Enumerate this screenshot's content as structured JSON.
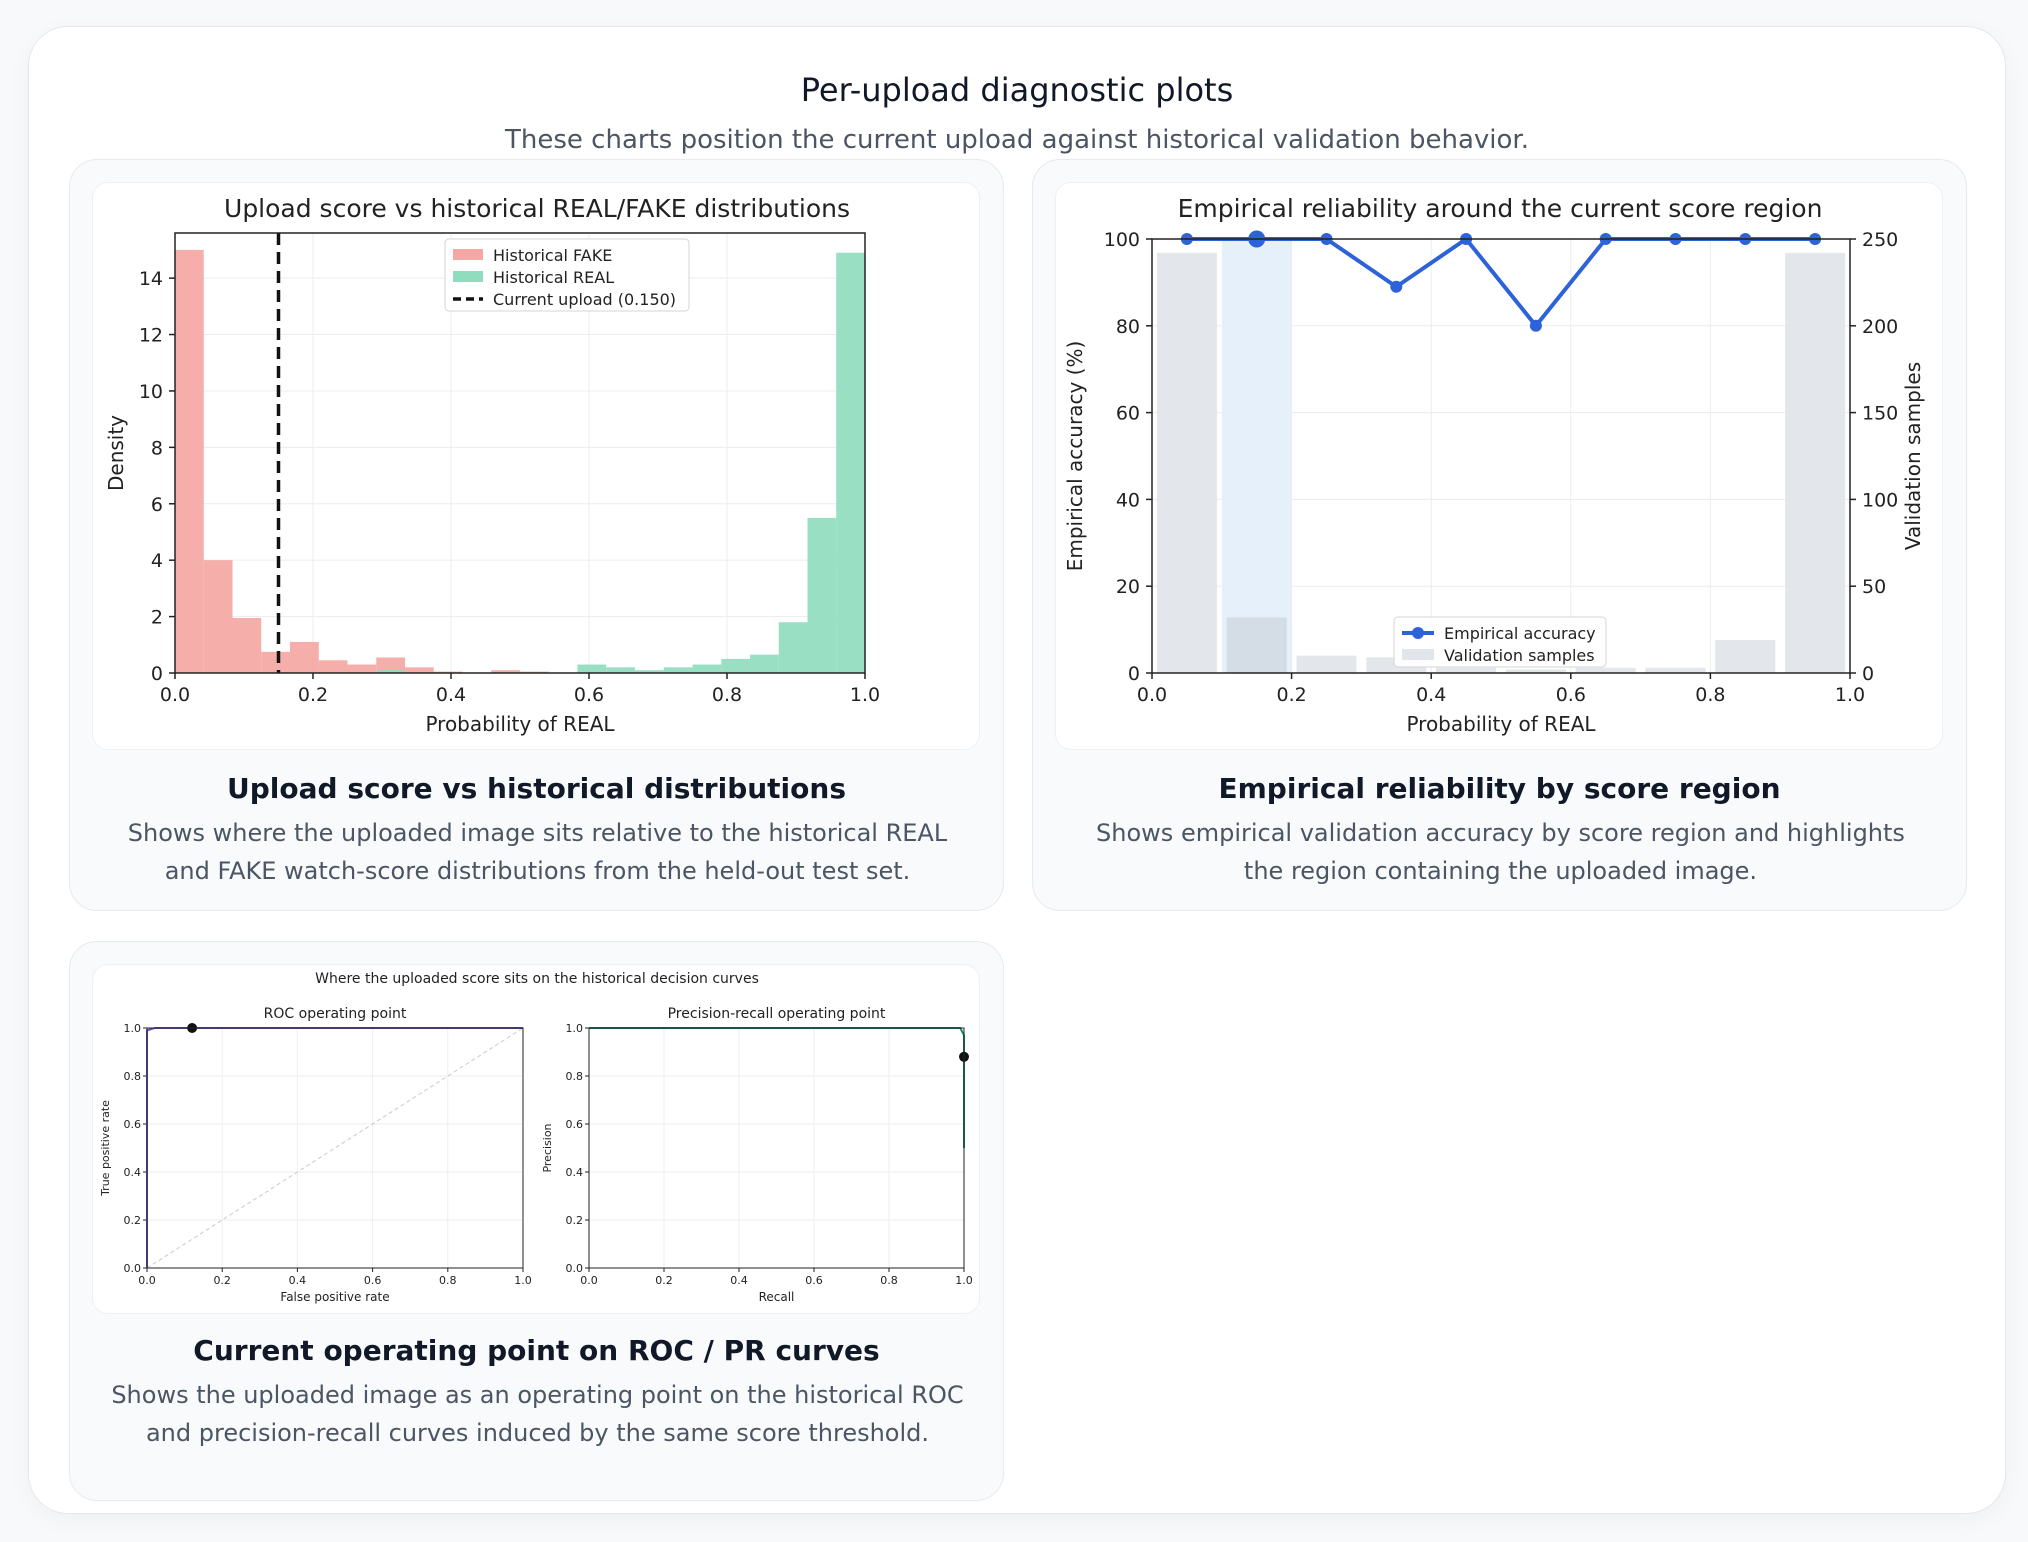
{
  "page": {
    "title": "Per-upload diagnostic plots",
    "subtitle": "These charts position the current upload against historical validation behavior."
  },
  "cards": [
    {
      "title": "Upload score vs historical distributions",
      "description": "Shows where the uploaded image sits relative to the historical REAL and FAKE watch-score distributions from the held-out test set."
    },
    {
      "title": "Empirical reliability by score region",
      "description": "Shows empirical validation accuracy by score region and highlights the region containing the uploaded image."
    },
    {
      "title": "Current operating point on ROC / PR curves",
      "description": "Shows the uploaded image as an operating point on the historical ROC and precision-recall curves induced by the same score threshold."
    }
  ],
  "colors": {
    "fake": "#f4a7a3",
    "real": "#8fdcbf",
    "accuracy_line": "#2d62d8",
    "sample_bar": "#e2e5ea",
    "highlight": "#e6f0fb"
  },
  "chart_data": [
    {
      "type": "bar",
      "title": "Upload score vs historical REAL/FAKE distributions",
      "xlabel": "Probability of REAL",
      "ylabel": "Density",
      "xlim": [
        0,
        1
      ],
      "ylim": [
        0,
        15.6
      ],
      "xticks": [
        "0.0",
        "0.2",
        "0.4",
        "0.6",
        "0.8",
        "1.0"
      ],
      "yticks": [
        "0",
        "2",
        "4",
        "6",
        "8",
        "10",
        "12",
        "14"
      ],
      "bin_width": 0.04167,
      "bin_starts": [
        0.0,
        0.0417,
        0.0833,
        0.125,
        0.1667,
        0.2083,
        0.25,
        0.2917,
        0.3333,
        0.375,
        0.4167,
        0.4583,
        0.5,
        0.5417,
        0.5833,
        0.625,
        0.6667,
        0.7083,
        0.75,
        0.7917,
        0.8333,
        0.875,
        0.9167,
        0.9583
      ],
      "series": [
        {
          "name": "Historical FAKE",
          "values": [
            15.0,
            4.0,
            1.95,
            0.75,
            1.1,
            0.45,
            0.3,
            0.55,
            0.2,
            0.05,
            0,
            0.1,
            0.05,
            0,
            0,
            0,
            0,
            0,
            0,
            0,
            0,
            0,
            0,
            0
          ]
        },
        {
          "name": "Historical REAL",
          "values": [
            0,
            0,
            0,
            0,
            0,
            0,
            0,
            0.1,
            0,
            0,
            0,
            0,
            0,
            0,
            0.3,
            0.2,
            0.1,
            0.2,
            0.3,
            0.5,
            0.65,
            1.8,
            5.5,
            14.9
          ]
        }
      ],
      "marker": {
        "name": "Current upload (0.150)",
        "x": 0.15
      },
      "grid": true,
      "legend": "top-center"
    },
    {
      "type": "line",
      "title": "Empirical reliability around the current score region",
      "xlabel": "Probability of REAL",
      "ylabel": "Empirical accuracy (%)",
      "y2label": "Validation samples",
      "xlim": [
        0,
        1
      ],
      "ylim": [
        0,
        100
      ],
      "y2lim": [
        0,
        250
      ],
      "xticks": [
        "0.0",
        "0.2",
        "0.4",
        "0.6",
        "0.8",
        "1.0"
      ],
      "yticks": [
        "0",
        "20",
        "40",
        "60",
        "80",
        "100"
      ],
      "y2ticks": [
        "0",
        "50",
        "100",
        "150",
        "200",
        "250"
      ],
      "bin_width": 0.1,
      "x": [
        0.05,
        0.15,
        0.25,
        0.35,
        0.45,
        0.55,
        0.65,
        0.75,
        0.85,
        0.95
      ],
      "series": [
        {
          "name": "Empirical accuracy",
          "values": [
            100,
            100,
            100,
            89,
            100,
            80,
            100,
            100,
            100,
            100
          ]
        },
        {
          "name": "Validation samples",
          "values": [
            242,
            32,
            10,
            9,
            3,
            2,
            3,
            3,
            19,
            242
          ]
        }
      ],
      "highlight_bin": 1,
      "grid": true,
      "legend": "bottom-center"
    },
    {
      "type": "line",
      "title": "Where the uploaded score sits on the historical decision curves",
      "subplots": [
        {
          "title": "ROC operating point",
          "xlabel": "False positive rate",
          "ylabel": "True positive rate",
          "xticks": [
            "0.0",
            "0.2",
            "0.4",
            "0.6",
            "0.8",
            "1.0"
          ],
          "yticks": [
            "0.0",
            "0.2",
            "0.4",
            "0.6",
            "0.8",
            "1.0"
          ],
          "curve_x": [
            0.0,
            0.0,
            0.02,
            1.0
          ],
          "curve_y": [
            0.0,
            0.99,
            1.0,
            1.0
          ],
          "point": {
            "x": 0.12,
            "y": 1.0
          }
        },
        {
          "title": "Precision-recall operating point",
          "xlabel": "Recall",
          "ylabel": "Precision",
          "xticks": [
            "0.0",
            "0.2",
            "0.4",
            "0.6",
            "0.8",
            "1.0"
          ],
          "yticks": [
            "0.0",
            "0.2",
            "0.4",
            "0.6",
            "0.8",
            "1.0"
          ],
          "curve_x": [
            0.0,
            0.99,
            1.0,
            1.0
          ],
          "curve_y": [
            1.0,
            1.0,
            0.97,
            0.5
          ],
          "point": {
            "x": 1.0,
            "y": 0.88
          }
        }
      ]
    }
  ]
}
